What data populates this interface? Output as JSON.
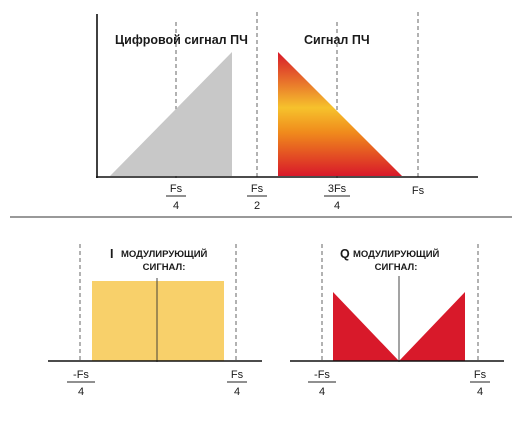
{
  "top_panel": {
    "label_digital": "Цифровой сигнал ПЧ",
    "label_signal": "Сигнал ПЧ",
    "ticks": [
      {
        "num": "Fs",
        "den": "4"
      },
      {
        "num": "Fs",
        "den": "2"
      },
      {
        "num": "3Fs",
        "den": "4"
      },
      {
        "num": "Fs",
        "den": ""
      }
    ]
  },
  "bottom_left": {
    "title_prefix": "I",
    "title_line1": "МОДУЛИРУЮЩИЙ",
    "title_line2": "СИГНАЛ:",
    "tick_left": {
      "num": "-Fs",
      "den": "4"
    },
    "tick_right": {
      "num": "Fs",
      "den": "4"
    }
  },
  "bottom_right": {
    "title_prefix": "Q",
    "title_line1": "МОДУЛИРУЮЩИЙ",
    "title_line2": "СИГНАЛ:",
    "tick_left": {
      "num": "-Fs",
      "den": "4"
    },
    "tick_right": {
      "num": "Fs",
      "den": "4"
    }
  },
  "colors": {
    "gray_fill": "#c8c8c8",
    "yellow": "#f8d048",
    "orange": "#f08a1c",
    "red": "#d8192a",
    "i_fill": "#f8d06a",
    "q_fill": "#d8192a"
  }
}
